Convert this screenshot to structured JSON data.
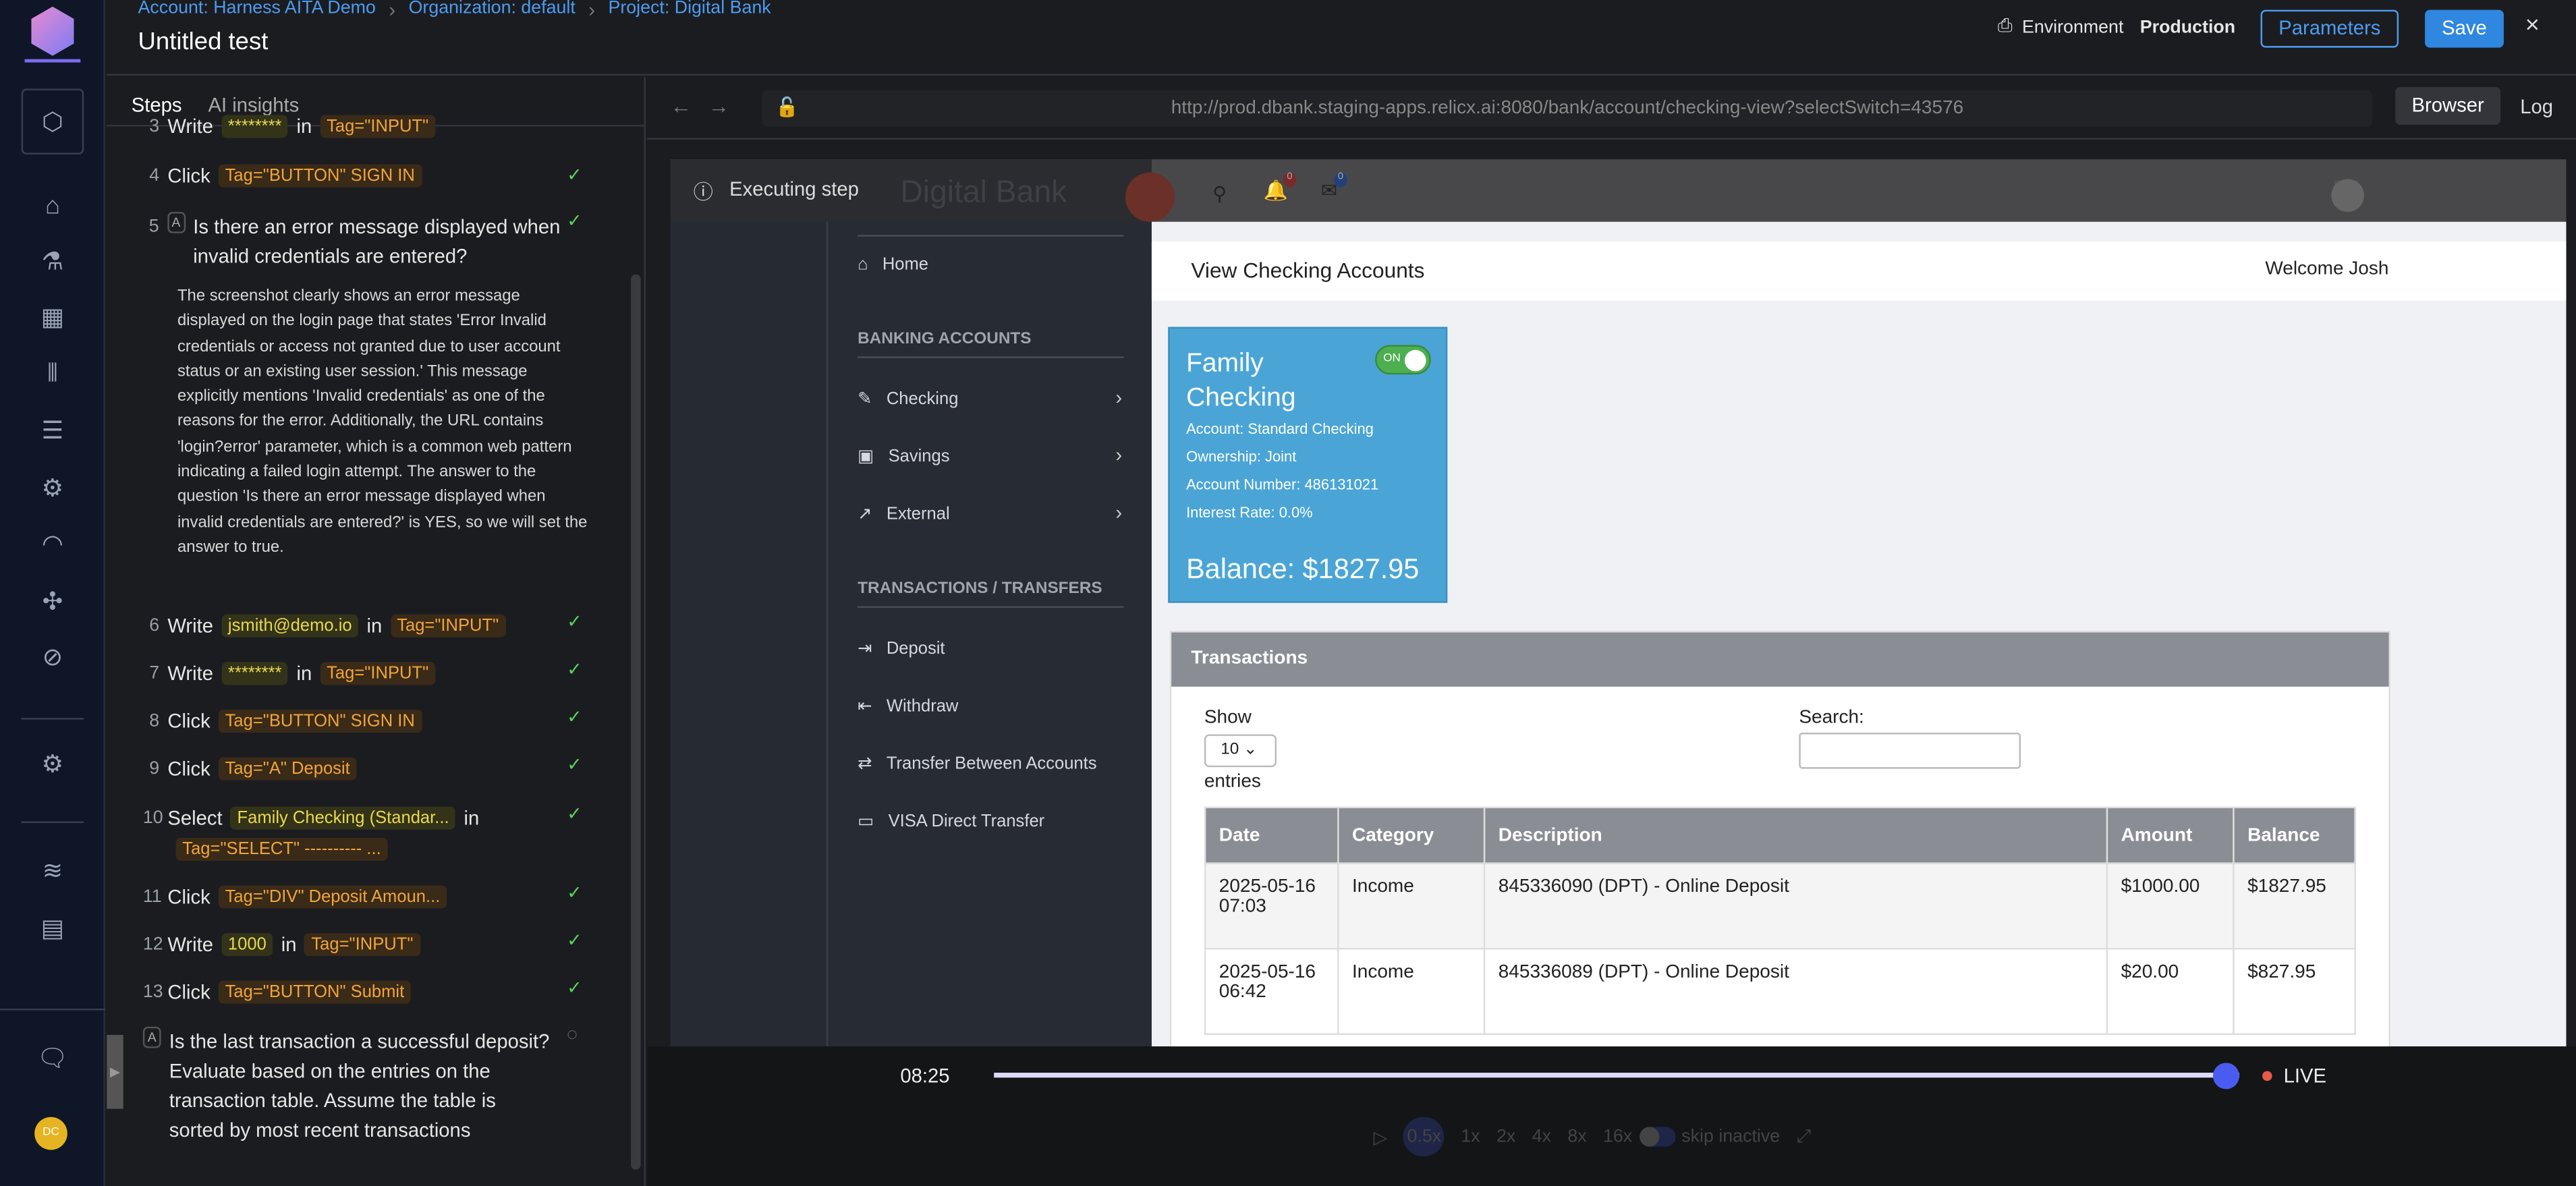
{
  "breadcrumb": [
    "Account: Harness AITA Demo",
    "Organization: default",
    "Project: Digital Bank"
  ],
  "title": "Untitled test",
  "header": {
    "environment_label": "Environment",
    "environment_value": "Production",
    "parameters": "Parameters",
    "save": "Save",
    "close": "×"
  },
  "user_initials": "DC",
  "tabs": [
    "Steps",
    "AI insights"
  ],
  "steps": [
    {
      "n": "3",
      "action": "Write",
      "value": "********",
      "in": "in",
      "tag": "Tag=\"INPUT\"",
      "status": "passed"
    },
    {
      "n": "4",
      "action": "Click",
      "tag": "Tag=\"BUTTON\" SIGN IN",
      "status": "passed"
    },
    {
      "n": "5",
      "question": "Is there an error message displayed when invalid credentials are entered?",
      "answer": "The screenshot clearly shows an error message displayed on the login page that states 'Error Invalid credentials or access not granted due to user account status or an existing user session.' This message explicitly mentions 'Invalid credentials' as one of the reasons for the error. Additionally, the URL contains 'login?error' parameter, which is a common web pattern indicating a failed login attempt. The answer to the question 'Is there an error message displayed when invalid credentials are entered?' is YES, so we will set the answer to true.",
      "status": "passed"
    },
    {
      "n": "6",
      "action": "Write",
      "value": "jsmith@demo.io",
      "in": "in",
      "tag": "Tag=\"INPUT\"",
      "status": "passed"
    },
    {
      "n": "7",
      "action": "Write",
      "value": "********",
      "in": "in",
      "tag": "Tag=\"INPUT\"",
      "status": "passed"
    },
    {
      "n": "8",
      "action": "Click",
      "tag": "Tag=\"BUTTON\" SIGN IN",
      "status": "passed"
    },
    {
      "n": "9",
      "action": "Click",
      "tag": "Tag=\"A\" Deposit",
      "status": "passed"
    },
    {
      "n": "10",
      "action": "Select",
      "value": "Family Checking (Standar...",
      "in": "in",
      "tag": "Tag=\"SELECT\" ---------- ...",
      "status": "passed"
    },
    {
      "n": "11",
      "action": "Click",
      "tag": "Tag=\"DIV\" Deposit Amoun...",
      "status": "passed"
    },
    {
      "n": "12",
      "action": "Write",
      "value": "1000",
      "in": "in",
      "tag": "Tag=\"INPUT\"",
      "status": "passed"
    },
    {
      "n": "13",
      "action": "Click",
      "tag": "Tag=\"BUTTON\" Submit",
      "status": "passed"
    },
    {
      "n": "",
      "question": "Is the last transaction a successful deposit? Evaluate based on the entries on the transaction table. Assume the table is sorted by most recent transactions",
      "status": "running"
    }
  ],
  "browser": {
    "url": "http://prod.dbank.staging-apps.relicx.ai:8080/bank/account/checking-view?selectSwitch=43576",
    "tabs": [
      "Browser",
      "Log"
    ],
    "executing": "Executing step"
  },
  "bank": {
    "logo": "Digital Bank",
    "notif_count": "0",
    "msg_count": "0",
    "nav": {
      "home": "Home",
      "h1": "BANKING ACCOUNTS",
      "checking": "Checking",
      "savings": "Savings",
      "external": "External",
      "h2": "TRANSACTIONS / TRANSFERS",
      "deposit": "Deposit",
      "withdraw": "Withdraw",
      "transfer": "Transfer Between Accounts",
      "visa": "VISA Direct Transfer"
    },
    "page_title": "View Checking Accounts",
    "welcome": "Welcome Josh",
    "card": {
      "name": "Family Checking",
      "toggle": "ON",
      "account": "Account: Standard Checking",
      "ownership": "Ownership: Joint",
      "number": "Account Number: 486131021",
      "rate": "Interest Rate: 0.0%",
      "balance": "Balance: $1827.95"
    },
    "transactions": {
      "title": "Transactions",
      "show": "Show",
      "entries_value": "10",
      "entries": "entries",
      "search": "Search:",
      "columns": [
        "Date",
        "Category",
        "Description",
        "Amount",
        "Balance"
      ],
      "rows": [
        [
          "2025-05-16 07:03",
          "Income",
          "845336090 (DPT) - Online Deposit",
          "$1000.00",
          "$1827.95"
        ],
        [
          "2025-05-16 06:42",
          "Income",
          "845336089 (DPT) - Online Deposit",
          "$20.00",
          "$827.95"
        ]
      ]
    }
  },
  "player": {
    "time": "08:25",
    "live": "LIVE",
    "progress": 0.99,
    "speeds": [
      "0.5x",
      "1x",
      "2x",
      "4x",
      "8x",
      "16x"
    ],
    "selected_speed": "0.5x",
    "skip": "skip inactive"
  }
}
